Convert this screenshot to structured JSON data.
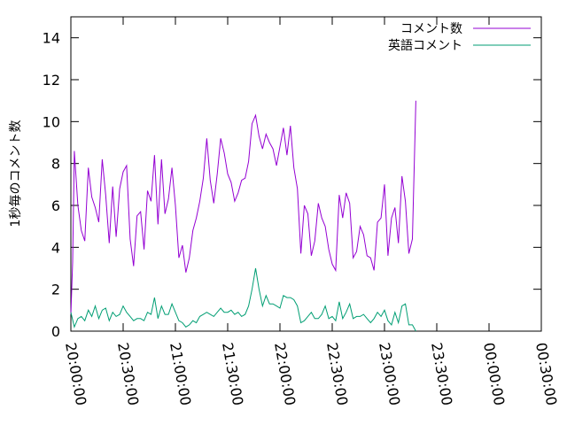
{
  "chart_data": {
    "type": "line",
    "title": "",
    "xlabel": "",
    "ylabel": "1秒毎のコメント数",
    "ylim": [
      0,
      15
    ],
    "yticks": [
      0,
      2,
      4,
      6,
      8,
      10,
      12,
      14
    ],
    "x_start": "20:00:00",
    "x_end": "00:30:00",
    "xticks": [
      "20:00:00",
      "20:30:00",
      "21:00:00",
      "21:30:00",
      "22:00:00",
      "22:30:00",
      "23:00:00",
      "23:30:00",
      "00:00:00",
      "00:30:00"
    ],
    "legend_position": "top-right",
    "grid": false,
    "series": [
      {
        "name": "コメント数",
        "color": "#9400d3",
        "points": [
          [
            "20:00:00",
            0.8
          ],
          [
            "20:01:00",
            3.3
          ],
          [
            "20:02:00",
            8.6
          ],
          [
            "20:04:00",
            6.0
          ],
          [
            "20:06:00",
            4.8
          ],
          [
            "20:08:00",
            4.3
          ],
          [
            "20:10:00",
            7.8
          ],
          [
            "20:12:00",
            6.4
          ],
          [
            "20:14:00",
            5.9
          ],
          [
            "20:16:00",
            5.2
          ],
          [
            "20:18:00",
            8.2
          ],
          [
            "20:20:00",
            6.5
          ],
          [
            "20:22:00",
            4.2
          ],
          [
            "20:24:00",
            6.9
          ],
          [
            "20:26:00",
            4.5
          ],
          [
            "20:28:00",
            6.8
          ],
          [
            "20:30:00",
            7.6
          ],
          [
            "20:32:00",
            7.9
          ],
          [
            "20:34:00",
            4.4
          ],
          [
            "20:36:00",
            3.1
          ],
          [
            "20:38:00",
            5.5
          ],
          [
            "20:40:00",
            5.7
          ],
          [
            "20:42:00",
            3.9
          ],
          [
            "20:44:00",
            6.7
          ],
          [
            "20:46:00",
            6.2
          ],
          [
            "20:48:00",
            8.4
          ],
          [
            "20:50:00",
            5.1
          ],
          [
            "20:52:00",
            8.2
          ],
          [
            "20:54:00",
            5.6
          ],
          [
            "20:56:00",
            6.3
          ],
          [
            "20:58:00",
            7.8
          ],
          [
            "21:00:00",
            6.0
          ],
          [
            "21:02:00",
            3.5
          ],
          [
            "21:04:00",
            4.1
          ],
          [
            "21:06:00",
            2.8
          ],
          [
            "21:08:00",
            3.5
          ],
          [
            "21:10:00",
            4.8
          ],
          [
            "21:12:00",
            5.4
          ],
          [
            "21:14:00",
            6.2
          ],
          [
            "21:16:00",
            7.3
          ],
          [
            "21:18:00",
            9.2
          ],
          [
            "21:20:00",
            7.2
          ],
          [
            "21:22:00",
            6.1
          ],
          [
            "21:24:00",
            7.5
          ],
          [
            "21:26:00",
            9.2
          ],
          [
            "21:28:00",
            8.5
          ],
          [
            "21:30:00",
            7.5
          ],
          [
            "21:32:00",
            7.1
          ],
          [
            "21:34:00",
            6.2
          ],
          [
            "21:36:00",
            6.6
          ],
          [
            "21:38:00",
            7.2
          ],
          [
            "21:40:00",
            7.3
          ],
          [
            "21:42:00",
            8.1
          ],
          [
            "21:44:00",
            9.9
          ],
          [
            "21:46:00",
            10.3
          ],
          [
            "21:48:00",
            9.3
          ],
          [
            "21:50:00",
            8.7
          ],
          [
            "21:52:00",
            9.4
          ],
          [
            "21:54:00",
            9.0
          ],
          [
            "21:56:00",
            8.7
          ],
          [
            "21:58:00",
            7.9
          ],
          [
            "22:00:00",
            8.8
          ],
          [
            "22:02:00",
            9.7
          ],
          [
            "22:04:00",
            8.4
          ],
          [
            "22:06:00",
            9.8
          ],
          [
            "22:08:00",
            7.8
          ],
          [
            "22:10:00",
            6.8
          ],
          [
            "22:12:00",
            3.7
          ],
          [
            "22:14:00",
            6.0
          ],
          [
            "22:16:00",
            5.6
          ],
          [
            "22:18:00",
            3.6
          ],
          [
            "22:20:00",
            4.3
          ],
          [
            "22:22:00",
            6.1
          ],
          [
            "22:24:00",
            5.4
          ],
          [
            "22:26:00",
            5.0
          ],
          [
            "22:28:00",
            3.9
          ],
          [
            "22:30:00",
            3.2
          ],
          [
            "22:32:00",
            2.9
          ],
          [
            "22:34:00",
            6.5
          ],
          [
            "22:36:00",
            5.4
          ],
          [
            "22:38:00",
            6.6
          ],
          [
            "22:40:00",
            6.1
          ],
          [
            "22:42:00",
            3.5
          ],
          [
            "22:44:00",
            3.8
          ],
          [
            "22:46:00",
            5.0
          ],
          [
            "22:48:00",
            4.6
          ],
          [
            "22:50:00",
            3.6
          ],
          [
            "22:52:00",
            3.5
          ],
          [
            "22:54:00",
            2.9
          ],
          [
            "22:56:00",
            5.2
          ],
          [
            "22:58:00",
            5.4
          ],
          [
            "23:00:00",
            7.0
          ],
          [
            "23:02:00",
            3.6
          ],
          [
            "23:04:00",
            5.4
          ],
          [
            "23:06:00",
            5.9
          ],
          [
            "23:08:00",
            4.2
          ],
          [
            "23:10:00",
            7.4
          ],
          [
            "23:12:00",
            6.2
          ],
          [
            "23:14:00",
            3.7
          ],
          [
            "23:16:00",
            4.4
          ],
          [
            "23:18:00",
            11.0
          ]
        ]
      },
      {
        "name": "英語コメント",
        "color": "#009e73",
        "points": [
          [
            "20:00:00",
            0.9
          ],
          [
            "20:02:00",
            0.2
          ],
          [
            "20:04:00",
            0.6
          ],
          [
            "20:06:00",
            0.7
          ],
          [
            "20:08:00",
            0.5
          ],
          [
            "20:10:00",
            1.0
          ],
          [
            "20:12:00",
            0.7
          ],
          [
            "20:14:00",
            1.2
          ],
          [
            "20:16:00",
            0.6
          ],
          [
            "20:18:00",
            1.0
          ],
          [
            "20:20:00",
            1.1
          ],
          [
            "20:22:00",
            0.5
          ],
          [
            "20:24:00",
            0.9
          ],
          [
            "20:26:00",
            0.7
          ],
          [
            "20:28:00",
            0.8
          ],
          [
            "20:30:00",
            1.2
          ],
          [
            "20:32:00",
            0.9
          ],
          [
            "20:34:00",
            0.7
          ],
          [
            "20:36:00",
            0.5
          ],
          [
            "20:38:00",
            0.6
          ],
          [
            "20:40:00",
            0.6
          ],
          [
            "20:42:00",
            0.5
          ],
          [
            "20:44:00",
            0.9
          ],
          [
            "20:46:00",
            0.8
          ],
          [
            "20:48:00",
            1.6
          ],
          [
            "20:50:00",
            0.6
          ],
          [
            "20:52:00",
            1.2
          ],
          [
            "20:54:00",
            0.8
          ],
          [
            "20:56:00",
            0.8
          ],
          [
            "20:58:00",
            1.3
          ],
          [
            "21:00:00",
            0.9
          ],
          [
            "21:02:00",
            0.5
          ],
          [
            "21:04:00",
            0.4
          ],
          [
            "21:06:00",
            0.2
          ],
          [
            "21:08:00",
            0.3
          ],
          [
            "21:10:00",
            0.5
          ],
          [
            "21:12:00",
            0.4
          ],
          [
            "21:14:00",
            0.7
          ],
          [
            "21:16:00",
            0.8
          ],
          [
            "21:18:00",
            0.9
          ],
          [
            "21:20:00",
            0.8
          ],
          [
            "21:22:00",
            0.7
          ],
          [
            "21:24:00",
            0.9
          ],
          [
            "21:26:00",
            1.1
          ],
          [
            "21:28:00",
            0.9
          ],
          [
            "21:30:00",
            0.9
          ],
          [
            "21:32:00",
            1.0
          ],
          [
            "21:34:00",
            0.8
          ],
          [
            "21:36:00",
            0.9
          ],
          [
            "21:38:00",
            0.7
          ],
          [
            "21:40:00",
            0.8
          ],
          [
            "21:42:00",
            1.2
          ],
          [
            "21:44:00",
            2.0
          ],
          [
            "21:46:00",
            3.0
          ],
          [
            "21:48:00",
            2.0
          ],
          [
            "21:50:00",
            1.2
          ],
          [
            "21:52:00",
            1.7
          ],
          [
            "21:54:00",
            1.3
          ],
          [
            "21:56:00",
            1.3
          ],
          [
            "21:58:00",
            1.2
          ],
          [
            "22:00:00",
            1.1
          ],
          [
            "22:02:00",
            1.7
          ],
          [
            "22:04:00",
            1.6
          ],
          [
            "22:06:00",
            1.6
          ],
          [
            "22:08:00",
            1.5
          ],
          [
            "22:10:00",
            1.2
          ],
          [
            "22:12:00",
            0.4
          ],
          [
            "22:14:00",
            0.5
          ],
          [
            "22:16:00",
            0.7
          ],
          [
            "22:18:00",
            0.9
          ],
          [
            "22:20:00",
            0.6
          ],
          [
            "22:22:00",
            0.6
          ],
          [
            "22:24:00",
            0.8
          ],
          [
            "22:26:00",
            1.2
          ],
          [
            "22:28:00",
            0.6
          ],
          [
            "22:30:00",
            0.7
          ],
          [
            "22:32:00",
            0.5
          ],
          [
            "22:34:00",
            1.4
          ],
          [
            "22:36:00",
            0.6
          ],
          [
            "22:38:00",
            0.9
          ],
          [
            "22:40:00",
            1.3
          ],
          [
            "22:42:00",
            0.6
          ],
          [
            "22:44:00",
            0.7
          ],
          [
            "22:46:00",
            0.7
          ],
          [
            "22:48:00",
            0.8
          ],
          [
            "22:50:00",
            0.6
          ],
          [
            "22:52:00",
            0.4
          ],
          [
            "22:54:00",
            0.6
          ],
          [
            "22:56:00",
            0.9
          ],
          [
            "22:58:00",
            0.7
          ],
          [
            "23:00:00",
            1.0
          ],
          [
            "23:02:00",
            0.5
          ],
          [
            "23:04:00",
            0.3
          ],
          [
            "23:06:00",
            0.9
          ],
          [
            "23:08:00",
            0.4
          ],
          [
            "23:10:00",
            1.2
          ],
          [
            "23:12:00",
            1.3
          ],
          [
            "23:14:00",
            0.3
          ],
          [
            "23:16:00",
            0.3
          ],
          [
            "23:18:00",
            0.0
          ]
        ]
      }
    ]
  }
}
